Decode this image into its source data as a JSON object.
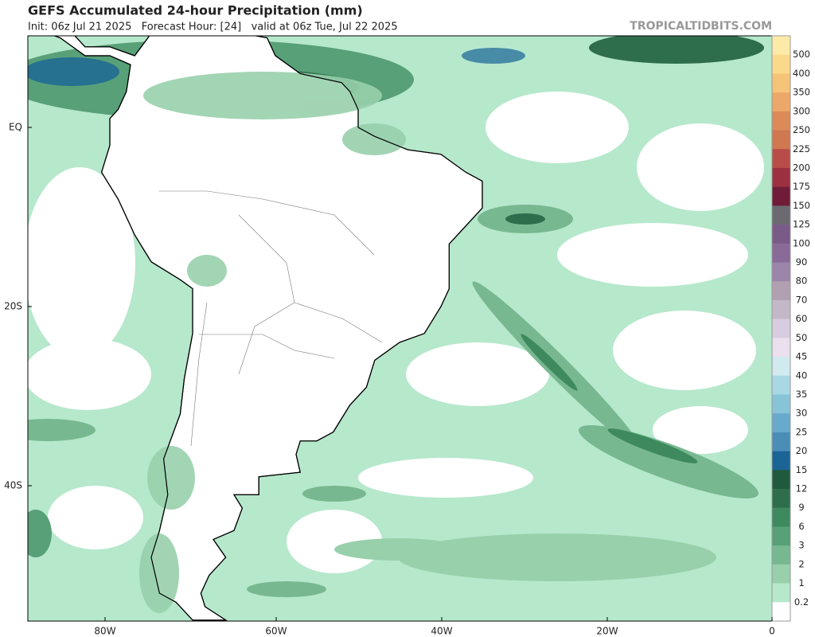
{
  "header": {
    "title": "GEFS Accumulated 24-hour Precipitation (mm)",
    "subtitle": "Init: 06z Jul 21 2025   Forecast Hour: [24]   valid at 06z Tue, Jul 22 2025",
    "watermark": "TROPICALTIDBITS.COM"
  },
  "map": {
    "lat_labels": [
      "EQ",
      "20S",
      "40S"
    ],
    "lon_labels": [
      "80W",
      "60W",
      "40W",
      "20W",
      "0"
    ]
  },
  "colorbar": {
    "levels": [
      500,
      400,
      350,
      300,
      250,
      225,
      200,
      175,
      150,
      125,
      100,
      90,
      80,
      70,
      60,
      50,
      45,
      40,
      35,
      30,
      25,
      20,
      15,
      12,
      9,
      6,
      3,
      2,
      1,
      0.2
    ],
    "colors": [
      "#fdeaa8",
      "#fbd98a",
      "#f6c478",
      "#eca868",
      "#dc8a58",
      "#d07850",
      "#b84c48",
      "#9c3040",
      "#701c38",
      "#6a6a70",
      "#7a5a88",
      "#8a6a98",
      "#9c84aa",
      "#b0a0b0",
      "#c4b8c8",
      "#d8cce0",
      "#ebe0ee",
      "#d0eaf0",
      "#a8d8e4",
      "#88c4d8",
      "#68aacc",
      "#4a8eb8",
      "#1a6496",
      "#1f5a3c",
      "#2e6e4c",
      "#3e8a5e",
      "#58a078",
      "#78b890",
      "#98d0ac",
      "#b6e8cc",
      "#ffffff"
    ]
  }
}
